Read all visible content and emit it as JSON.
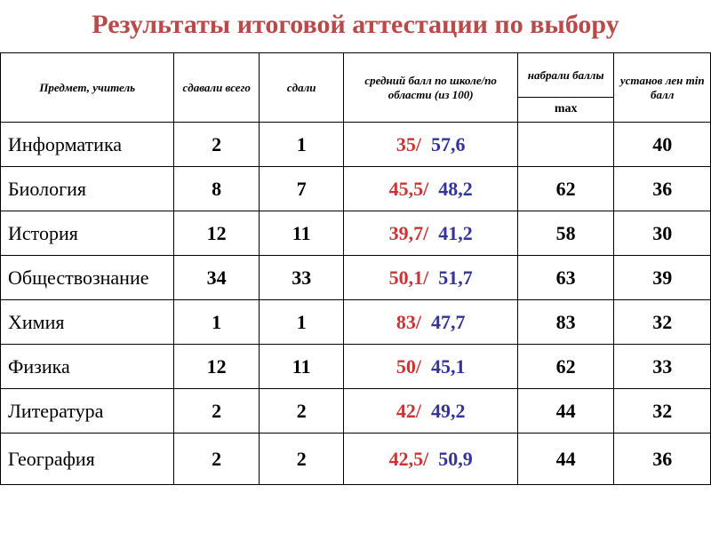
{
  "title": "Результаты итоговой аттестации по выбору",
  "columns": {
    "subject": "Предмет, учитель",
    "total": "сдавали всего",
    "passed": "сдали",
    "avg": "средний балл по школе/по области (из 100)",
    "max_header": "набрали баллы",
    "max_sub": "max",
    "min": "установ лен min балл"
  },
  "colors": {
    "title": "#b84a4a",
    "school": "#cc3333",
    "region": "#333399",
    "border": "#000000",
    "bg": "#ffffff"
  },
  "font": {
    "family": "Times New Roman",
    "title_size": 30,
    "header_size": 13,
    "body_size": 22
  },
  "rows": [
    {
      "subject": "Информатика",
      "total": "2",
      "passed": "1",
      "school": "35/",
      "region": "57,6",
      "max": "",
      "min": "40"
    },
    {
      "subject": "Биология",
      "total": "8",
      "passed": "7",
      "school": "45,5/",
      "region": "48,2",
      "max": "62",
      "min": "36"
    },
    {
      "subject": "История",
      "total": "12",
      "passed": "11",
      "school": "39,7/",
      "region": "41,2",
      "max": "58",
      "min": "30"
    },
    {
      "subject": "Обществознание",
      "total": "34",
      "passed": "33",
      "school": "50,1/",
      "region": "51,7",
      "max": "63",
      "min": "39"
    },
    {
      "subject": "Химия",
      "total": "1",
      "passed": "1",
      "school": "83/",
      "region": "47,7",
      "max": "83",
      "min": "32"
    },
    {
      "subject": "Физика",
      "total": "12",
      "passed": "11",
      "school": "50/",
      "region": "45,1",
      "max": "62",
      "min": "33"
    },
    {
      "subject": "Литература",
      "total": "2",
      "passed": "2",
      "school": "42/",
      "region": "49,2",
      "max": "44",
      "min": "32"
    },
    {
      "subject": "География",
      "total": "2",
      "passed": "2",
      "school": "42,5/",
      "region": "50,9",
      "max": "44",
      "min": "36"
    }
  ]
}
